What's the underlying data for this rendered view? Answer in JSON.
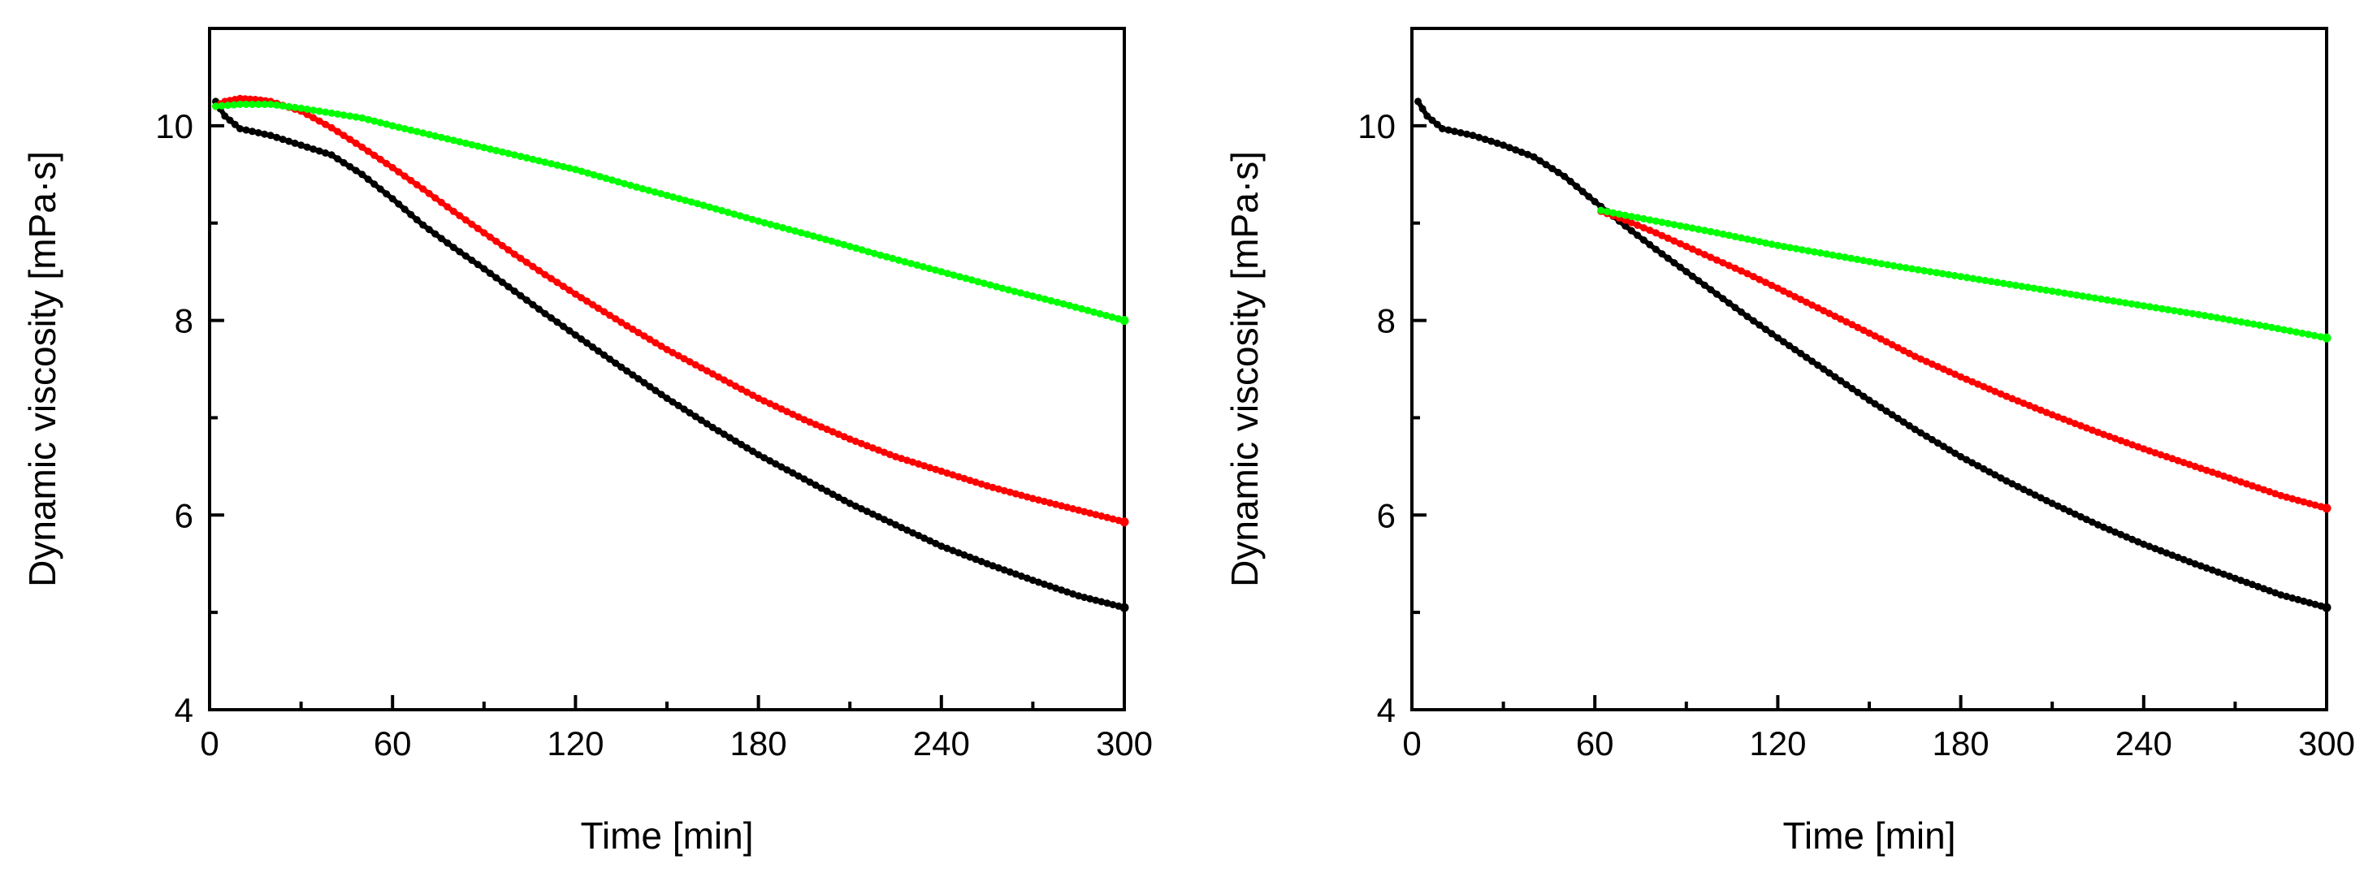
{
  "chart_data": [
    {
      "type": "scatter",
      "title": "",
      "xlabel": "Time [min]",
      "ylabel": "Dynamic viscosity [mPa·s]",
      "xlim": [
        0,
        300
      ],
      "ylim": [
        4,
        11
      ],
      "x_ticks": [
        0,
        60,
        120,
        180,
        240,
        300
      ],
      "x_tick_labels": [
        "0",
        "60",
        "120",
        "180",
        "240",
        "300"
      ],
      "y_ticks": [
        4,
        6,
        8,
        10
      ],
      "y_tick_labels": [
        "4",
        "6",
        "8",
        "10"
      ],
      "grid": false,
      "series": [
        {
          "name": "black",
          "color": "#000000",
          "x": [
            2,
            5,
            10,
            20,
            30,
            40,
            50,
            60,
            70,
            80,
            90,
            100,
            110,
            120,
            135,
            150,
            165,
            180,
            195,
            210,
            225,
            240,
            255,
            270,
            285,
            300
          ],
          "y": [
            10.25,
            10.1,
            9.97,
            9.9,
            9.8,
            9.7,
            9.5,
            9.25,
            8.98,
            8.75,
            8.53,
            8.3,
            8.07,
            7.85,
            7.52,
            7.2,
            6.9,
            6.62,
            6.37,
            6.12,
            5.9,
            5.68,
            5.5,
            5.33,
            5.17,
            5.05
          ]
        },
        {
          "name": "red",
          "color": "#ff0000",
          "x": [
            2,
            5,
            10,
            15,
            20,
            30,
            40,
            50,
            60,
            70,
            80,
            90,
            100,
            110,
            120,
            135,
            150,
            165,
            180,
            195,
            210,
            225,
            240,
            255,
            270,
            285,
            300
          ],
          "y": [
            10.2,
            10.25,
            10.28,
            10.27,
            10.25,
            10.15,
            9.98,
            9.78,
            9.57,
            9.35,
            9.12,
            8.9,
            8.68,
            8.47,
            8.27,
            7.98,
            7.7,
            7.45,
            7.2,
            6.98,
            6.78,
            6.6,
            6.45,
            6.3,
            6.17,
            6.05,
            5.93
          ]
        },
        {
          "name": "green",
          "color": "#00ff00",
          "x": [
            2,
            10,
            20,
            30,
            40,
            50,
            60,
            80,
            100,
            120,
            140,
            160,
            180,
            200,
            220,
            240,
            260,
            280,
            300
          ],
          "y": [
            10.2,
            10.22,
            10.22,
            10.18,
            10.13,
            10.08,
            10.0,
            9.85,
            9.7,
            9.55,
            9.37,
            9.2,
            9.02,
            8.85,
            8.67,
            8.5,
            8.33,
            8.17,
            8.0
          ]
        }
      ]
    },
    {
      "type": "scatter",
      "title": "",
      "xlabel": "Time [min]",
      "ylabel": "Dynamic viscosity [mPa·s]",
      "xlim": [
        0,
        300
      ],
      "ylim": [
        4,
        11
      ],
      "x_ticks": [
        0,
        60,
        120,
        180,
        240,
        300
      ],
      "x_tick_labels": [
        "0",
        "60",
        "120",
        "180",
        "240",
        "300"
      ],
      "y_ticks": [
        4,
        6,
        8,
        10
      ],
      "y_tick_labels": [
        "4",
        "6",
        "8",
        "10"
      ],
      "grid": false,
      "series": [
        {
          "name": "black",
          "color": "#000000",
          "x": [
            2,
            5,
            10,
            20,
            30,
            40,
            50,
            60,
            70,
            80,
            90,
            100,
            110,
            120,
            135,
            150,
            165,
            180,
            195,
            210,
            225,
            240,
            255,
            270,
            285,
            300
          ],
          "y": [
            10.25,
            10.1,
            9.97,
            9.9,
            9.8,
            9.68,
            9.48,
            9.22,
            8.97,
            8.73,
            8.5,
            8.27,
            8.04,
            7.82,
            7.5,
            7.18,
            6.88,
            6.6,
            6.35,
            6.12,
            5.9,
            5.7,
            5.52,
            5.35,
            5.18,
            5.05
          ]
        },
        {
          "name": "red",
          "color": "#ff0000",
          "x": [
            62,
            70,
            80,
            90,
            100,
            110,
            120,
            135,
            150,
            165,
            180,
            195,
            210,
            225,
            240,
            255,
            270,
            285,
            300
          ],
          "y": [
            9.12,
            9.03,
            8.9,
            8.76,
            8.62,
            8.48,
            8.33,
            8.1,
            7.87,
            7.63,
            7.42,
            7.22,
            7.03,
            6.85,
            6.68,
            6.52,
            6.36,
            6.2,
            6.07
          ]
        },
        {
          "name": "green",
          "color": "#00ff00",
          "x": [
            62,
            70,
            80,
            100,
            120,
            140,
            160,
            180,
            200,
            220,
            240,
            260,
            280,
            300
          ],
          "y": [
            9.13,
            9.08,
            9.02,
            8.9,
            8.77,
            8.66,
            8.55,
            8.45,
            8.35,
            8.25,
            8.15,
            8.05,
            7.94,
            7.82
          ]
        }
      ]
    }
  ]
}
